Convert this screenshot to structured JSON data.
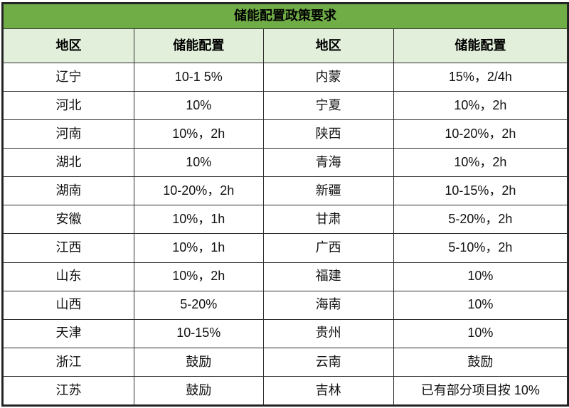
{
  "chart_data": {
    "type": "table",
    "title": "储能配置政策要求",
    "columns": [
      "地区",
      "储能配置",
      "地区",
      "储能配置"
    ],
    "rows": [
      [
        "辽宁",
        "10-1 5%",
        "内蒙",
        "15%，2/4h"
      ],
      [
        "河北",
        "10%",
        "宁夏",
        "10%，2h"
      ],
      [
        "河南",
        "10%，2h",
        "陕西",
        "10-20%，2h"
      ],
      [
        "湖北",
        "10%",
        "青海",
        "10%，2h"
      ],
      [
        "湖南",
        "10-20%，2h",
        "新疆",
        "10-15%，2h"
      ],
      [
        "安徽",
        "10%，1h",
        "甘肃",
        "5-20%，2h"
      ],
      [
        "江西",
        "10%，1h",
        "广西",
        "5-10%，2h"
      ],
      [
        "山东",
        "10%，2h",
        "福建",
        "10%"
      ],
      [
        "山西",
        "5-20%",
        "海南",
        "10%"
      ],
      [
        "天津",
        "10-15%",
        "贵州",
        "10%"
      ],
      [
        "浙江",
        "鼓励",
        "云南",
        "鼓励"
      ],
      [
        "江苏",
        "鼓励",
        "吉林",
        "已有部分项目按 10%"
      ]
    ]
  },
  "colors": {
    "title_bg": "#70AD47",
    "header_bg": "#E2EFDA",
    "border": "#212121",
    "grid": "#2e2e2e",
    "text": "#111111"
  }
}
